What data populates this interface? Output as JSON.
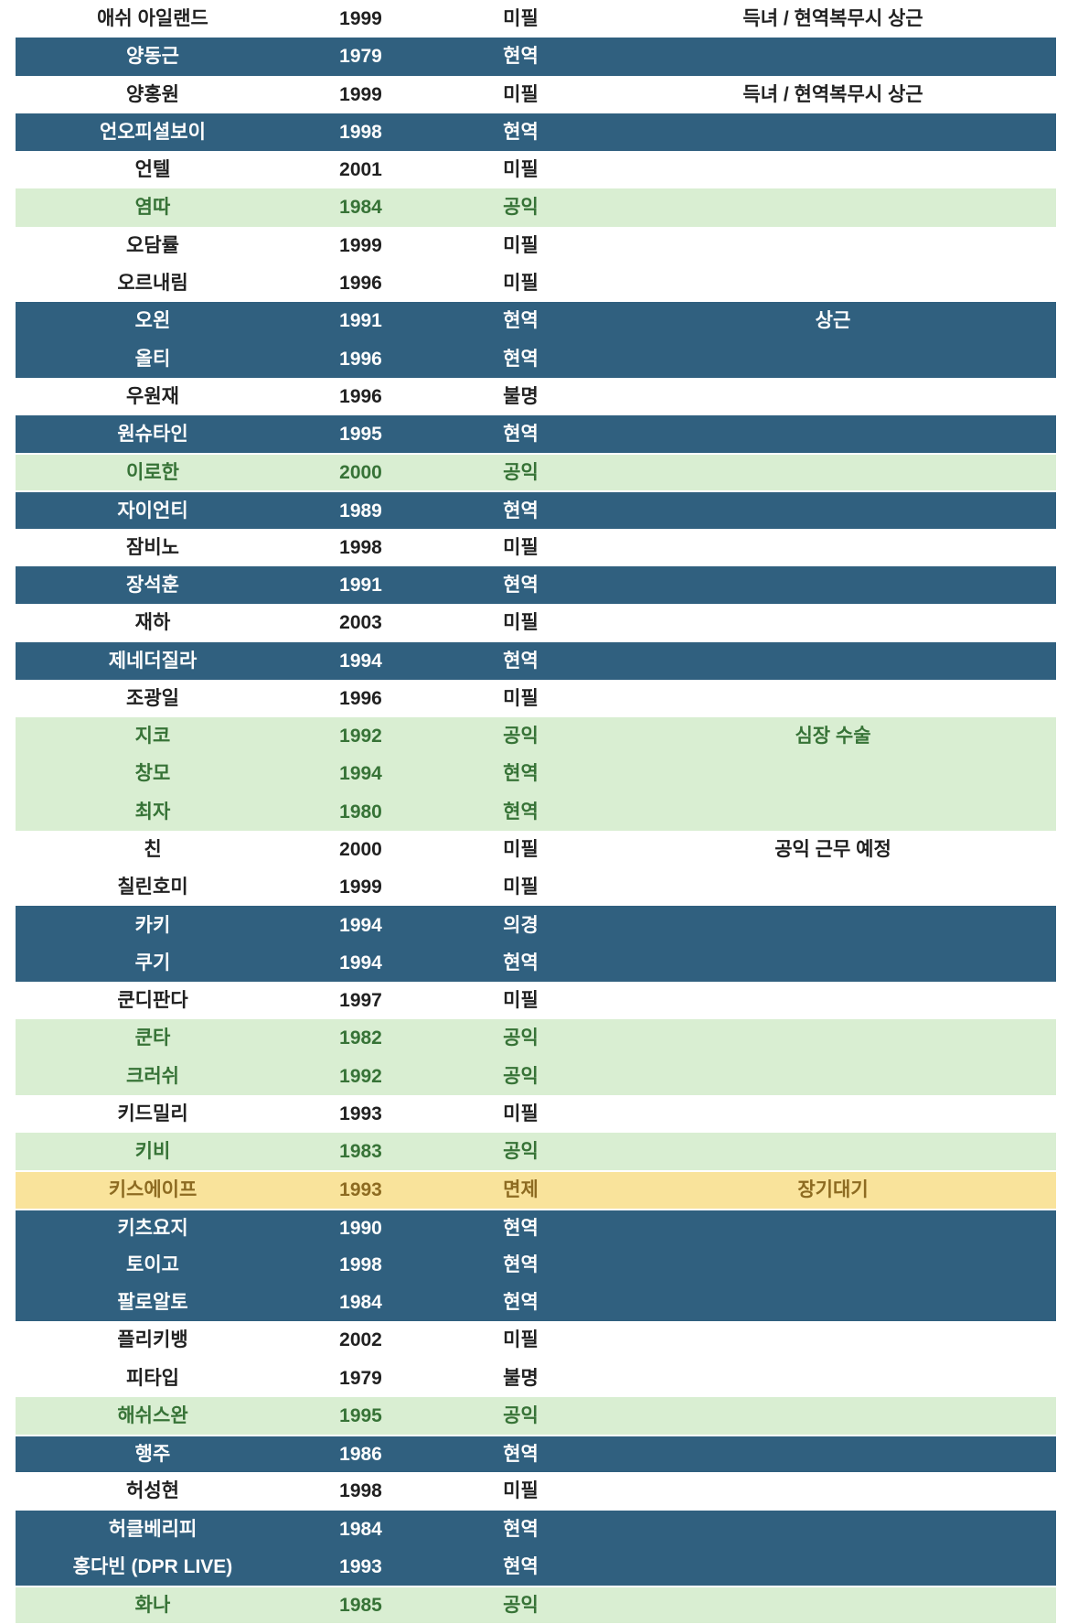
{
  "table": {
    "description": "artist-military-service-table",
    "row_colors": {
      "white": {
        "bg": "#FFFFFF",
        "text": "#212121"
      },
      "blue": {
        "bg": "#30607F",
        "text": "#FDFDFD"
      },
      "green": {
        "bg": "#D9EED2",
        "text": "#377337"
      },
      "yellow": {
        "bg": "#F9E39B",
        "text": "#8D6B21"
      }
    },
    "status_values": [
      "미필",
      "현역",
      "공익",
      "불명",
      "의경",
      "면제"
    ],
    "rows": [
      {
        "name": "애쉬 아일랜드",
        "year": "1999",
        "status": "미필",
        "note": "득녀 / 현역복무시 상근",
        "highlight": "white"
      },
      {
        "name": "양동근",
        "year": "1979",
        "status": "현역",
        "note": "",
        "highlight": "blue"
      },
      {
        "name": "양홍원",
        "year": "1999",
        "status": "미필",
        "note": "득녀 / 현역복무시 상근",
        "highlight": "white"
      },
      {
        "name": "언오피셜보이",
        "year": "1998",
        "status": "현역",
        "note": "",
        "highlight": "blue"
      },
      {
        "name": "언텔",
        "year": "2001",
        "status": "미필",
        "note": "",
        "highlight": "white"
      },
      {
        "name": "염따",
        "year": "1984",
        "status": "공익",
        "note": "",
        "highlight": "green"
      },
      {
        "name": "오담률",
        "year": "1999",
        "status": "미필",
        "note": "",
        "highlight": "white"
      },
      {
        "name": "오르내림",
        "year": "1996",
        "status": "미필",
        "note": "",
        "highlight": "white"
      },
      {
        "name": "오왼",
        "year": "1991",
        "status": "현역",
        "note": "상근",
        "highlight": "blue"
      },
      {
        "name": "올티",
        "year": "1996",
        "status": "현역",
        "note": "",
        "highlight": "blue"
      },
      {
        "name": "우원재",
        "year": "1996",
        "status": "불명",
        "note": "",
        "highlight": "white"
      },
      {
        "name": "원슈타인",
        "year": "1995",
        "status": "현역",
        "note": "",
        "highlight": "blue"
      },
      {
        "name": "이로한",
        "year": "2000",
        "status": "공익",
        "note": "",
        "highlight": "green"
      },
      {
        "name": "자이언티",
        "year": "1989",
        "status": "현역",
        "note": "",
        "highlight": "blue"
      },
      {
        "name": "잠비노",
        "year": "1998",
        "status": "미필",
        "note": "",
        "highlight": "white"
      },
      {
        "name": "장석훈",
        "year": "1991",
        "status": "현역",
        "note": "",
        "highlight": "blue"
      },
      {
        "name": "재하",
        "year": "2003",
        "status": "미필",
        "note": "",
        "highlight": "white"
      },
      {
        "name": "제네더질라",
        "year": "1994",
        "status": "현역",
        "note": "",
        "highlight": "blue"
      },
      {
        "name": "조광일",
        "year": "1996",
        "status": "미필",
        "note": "",
        "highlight": "white"
      },
      {
        "name": "지코",
        "year": "1992",
        "status": "공익",
        "note": "심장 수술",
        "highlight": "green"
      },
      {
        "name": "창모",
        "year": "1994",
        "status": "현역",
        "note": "",
        "highlight": "green"
      },
      {
        "name": "최자",
        "year": "1980",
        "status": "현역",
        "note": "",
        "highlight": "green"
      },
      {
        "name": "친",
        "year": "2000",
        "status": "미필",
        "note": "공익 근무 예정",
        "highlight": "white"
      },
      {
        "name": "칠린호미",
        "year": "1999",
        "status": "미필",
        "note": "",
        "highlight": "white"
      },
      {
        "name": "카키",
        "year": "1994",
        "status": "의경",
        "note": "",
        "highlight": "blue"
      },
      {
        "name": "쿠기",
        "year": "1994",
        "status": "현역",
        "note": "",
        "highlight": "blue"
      },
      {
        "name": "쿤디판다",
        "year": "1997",
        "status": "미필",
        "note": "",
        "highlight": "white"
      },
      {
        "name": "쿤타",
        "year": "1982",
        "status": "공익",
        "note": "",
        "highlight": "green"
      },
      {
        "name": "크러쉬",
        "year": "1992",
        "status": "공익",
        "note": "",
        "highlight": "green"
      },
      {
        "name": "키드밀리",
        "year": "1993",
        "status": "미필",
        "note": "",
        "highlight": "white"
      },
      {
        "name": "키비",
        "year": "1983",
        "status": "공익",
        "note": "",
        "highlight": "green"
      },
      {
        "name": "키스에이프",
        "year": "1993",
        "status": "면제",
        "note": "장기대기",
        "highlight": "yellow"
      },
      {
        "name": "키츠요지",
        "year": "1990",
        "status": "현역",
        "note": "",
        "highlight": "blue"
      },
      {
        "name": "토이고",
        "year": "1998",
        "status": "현역",
        "note": "",
        "highlight": "blue"
      },
      {
        "name": "팔로알토",
        "year": "1984",
        "status": "현역",
        "note": "",
        "highlight": "blue"
      },
      {
        "name": "플리키뱅",
        "year": "2002",
        "status": "미필",
        "note": "",
        "highlight": "white"
      },
      {
        "name": "피타입",
        "year": "1979",
        "status": "불명",
        "note": "",
        "highlight": "white"
      },
      {
        "name": "해쉬스완",
        "year": "1995",
        "status": "공익",
        "note": "",
        "highlight": "green"
      },
      {
        "name": "행주",
        "year": "1986",
        "status": "현역",
        "note": "",
        "highlight": "blue"
      },
      {
        "name": "허성현",
        "year": "1998",
        "status": "미필",
        "note": "",
        "highlight": "white"
      },
      {
        "name": "허클베리피",
        "year": "1984",
        "status": "현역",
        "note": "",
        "highlight": "blue"
      },
      {
        "name": "홍다빈 (DPR LIVE)",
        "year": "1993",
        "status": "현역",
        "note": "",
        "highlight": "blue"
      },
      {
        "name": "화나",
        "year": "1985",
        "status": "공익",
        "note": "",
        "highlight": "green"
      }
    ]
  }
}
